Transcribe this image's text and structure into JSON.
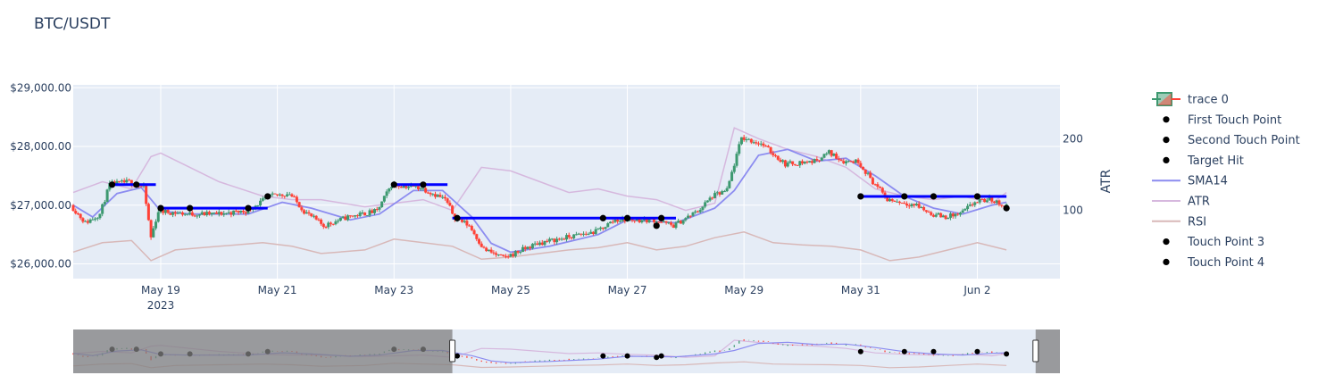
{
  "chart_data": {
    "type": "candlestick",
    "title": "BTC/USDT",
    "x_tick_labels": [
      "May 19\n2023",
      "May 21",
      "May 23",
      "May 25",
      "May 27",
      "May 29",
      "May 31",
      "Jun 2"
    ],
    "x_tick_dates": [
      "2023-05-19",
      "2023-05-21",
      "2023-05-23",
      "2023-05-25",
      "2023-05-27",
      "2023-05-29",
      "2023-05-31",
      "2023-06-02"
    ],
    "xlim": [
      "2023-05-17T12:00",
      "2023-06-03T10:00"
    ],
    "y_left": {
      "ylim": [
        25750,
        29050
      ],
      "ticks": [
        26000,
        27000,
        28000,
        29000
      ],
      "tick_labels": [
        "$26,000.00",
        "$27,000.00",
        "$28,000.00",
        "$29,000.00"
      ]
    },
    "y_right": {
      "label": "ATR",
      "ylim": [
        5,
        275
      ],
      "ticks": [
        100,
        200
      ],
      "tick_labels": [
        "100",
        "200"
      ]
    },
    "grid": true,
    "legend_position": "right",
    "legend": [
      "trace 0",
      "First Touch Point",
      "Second Touch Point",
      "Target Hit",
      "SMA14",
      "ATR",
      "RSI",
      "Touch Point 3",
      "Touch Point 4"
    ],
    "price_path": [
      [
        "2023-05-17T12:00",
        27000
      ],
      [
        "2023-05-17T18:00",
        26700
      ],
      [
        "2023-05-18T00:00",
        26850
      ],
      [
        "2023-05-18T04:00",
        27350
      ],
      [
        "2023-05-18T12:00",
        27400
      ],
      [
        "2023-05-18T18:00",
        27300
      ],
      [
        "2023-05-18T21:00",
        26450
      ],
      [
        "2023-05-19T00:00",
        26900
      ],
      [
        "2023-05-19T12:00",
        26850
      ],
      [
        "2023-05-20T00:00",
        26850
      ],
      [
        "2023-05-20T12:00",
        26900
      ],
      [
        "2023-05-20T22:00",
        27150
      ],
      [
        "2023-05-21T06:00",
        27200
      ],
      [
        "2023-05-21T12:00",
        26900
      ],
      [
        "2023-05-21T20:00",
        26650
      ],
      [
        "2023-05-22T06:00",
        26800
      ],
      [
        "2023-05-22T18:00",
        26900
      ],
      [
        "2023-05-23T00:00",
        27350
      ],
      [
        "2023-05-23T12:00",
        27300
      ],
      [
        "2023-05-23T22:00",
        27100
      ],
      [
        "2023-05-24T02:00",
        26800
      ],
      [
        "2023-05-24T08:00",
        26650
      ],
      [
        "2023-05-24T14:00",
        26250
      ],
      [
        "2023-05-24T22:00",
        26100
      ],
      [
        "2023-05-25T12:00",
        26350
      ],
      [
        "2023-05-26T00:00",
        26450
      ],
      [
        "2023-05-26T12:00",
        26550
      ],
      [
        "2023-05-26T20:00",
        26750
      ],
      [
        "2023-05-27T12:00",
        26750
      ],
      [
        "2023-05-27T20:00",
        26650
      ],
      [
        "2023-05-28T06:00",
        26900
      ],
      [
        "2023-05-28T12:00",
        27150
      ],
      [
        "2023-05-28T18:00",
        27250
      ],
      [
        "2023-05-28T22:00",
        27850
      ],
      [
        "2023-05-29T00:00",
        28150
      ],
      [
        "2023-05-29T08:00",
        28050
      ],
      [
        "2023-05-29T18:00",
        27700
      ],
      [
        "2023-05-30T06:00",
        27750
      ],
      [
        "2023-05-30T12:00",
        27900
      ],
      [
        "2023-05-30T18:00",
        27750
      ],
      [
        "2023-05-31T00:00",
        27750
      ],
      [
        "2023-05-31T06:00",
        27400
      ],
      [
        "2023-05-31T12:00",
        27100
      ],
      [
        "2023-06-01T00:00",
        27000
      ],
      [
        "2023-06-01T06:00",
        26850
      ],
      [
        "2023-06-01T12:00",
        26800
      ],
      [
        "2023-06-01T18:00",
        26850
      ],
      [
        "2023-06-02T00:00",
        27050
      ],
      [
        "2023-06-02T06:00",
        27100
      ],
      [
        "2023-06-02T12:00",
        27000
      ]
    ],
    "sma14": [
      [
        "2023-05-17T12:00",
        27000
      ],
      [
        "2023-05-17T20:00",
        26800
      ],
      [
        "2023-05-18T06:00",
        27200
      ],
      [
        "2023-05-18T16:00",
        27300
      ],
      [
        "2023-05-19T00:00",
        26900
      ],
      [
        "2023-05-19T12:00",
        26850
      ],
      [
        "2023-05-20T12:00",
        26850
      ],
      [
        "2023-05-21T02:00",
        27050
      ],
      [
        "2023-05-21T14:00",
        26950
      ],
      [
        "2023-05-22T06:00",
        26750
      ],
      [
        "2023-05-22T18:00",
        26850
      ],
      [
        "2023-05-23T08:00",
        27250
      ],
      [
        "2023-05-23T20:00",
        27250
      ],
      [
        "2023-05-24T08:00",
        26800
      ],
      [
        "2023-05-24T16:00",
        26350
      ],
      [
        "2023-05-25T00:00",
        26200
      ],
      [
        "2023-05-25T16:00",
        26300
      ],
      [
        "2023-05-26T12:00",
        26500
      ],
      [
        "2023-05-27T00:00",
        26750
      ],
      [
        "2023-05-27T20:00",
        26700
      ],
      [
        "2023-05-28T12:00",
        26950
      ],
      [
        "2023-05-28T20:00",
        27250
      ],
      [
        "2023-05-29T06:00",
        27850
      ],
      [
        "2023-05-29T18:00",
        27950
      ],
      [
        "2023-05-30T06:00",
        27750
      ],
      [
        "2023-05-30T18:00",
        27800
      ],
      [
        "2023-05-31T06:00",
        27500
      ],
      [
        "2023-05-31T18:00",
        27150
      ],
      [
        "2023-06-01T06:00",
        26950
      ],
      [
        "2023-06-01T18:00",
        26850
      ],
      [
        "2023-06-02T06:00",
        27000
      ],
      [
        "2023-06-02T12:00",
        27050
      ]
    ],
    "atr": [
      [
        "2023-05-17T12:00",
        125
      ],
      [
        "2023-05-18T00:00",
        140
      ],
      [
        "2023-05-18T12:00",
        130
      ],
      [
        "2023-05-18T20:00",
        175
      ],
      [
        "2023-05-19T00:00",
        180
      ],
      [
        "2023-05-19T12:00",
        160
      ],
      [
        "2023-05-20T00:00",
        140
      ],
      [
        "2023-05-20T18:00",
        120
      ],
      [
        "2023-05-21T06:00",
        115
      ],
      [
        "2023-05-21T18:00",
        115
      ],
      [
        "2023-05-22T12:00",
        105
      ],
      [
        "2023-05-23T00:00",
        110
      ],
      [
        "2023-05-23T12:00",
        115
      ],
      [
        "2023-05-24T00:00",
        100
      ],
      [
        "2023-05-24T12:00",
        160
      ],
      [
        "2023-05-25T00:00",
        155
      ],
      [
        "2023-05-25T12:00",
        140
      ],
      [
        "2023-05-26T00:00",
        125
      ],
      [
        "2023-05-26T12:00",
        130
      ],
      [
        "2023-05-27T00:00",
        120
      ],
      [
        "2023-05-27T12:00",
        115
      ],
      [
        "2023-05-28T00:00",
        100
      ],
      [
        "2023-05-28T12:00",
        110
      ],
      [
        "2023-05-28T20:00",
        215
      ],
      [
        "2023-05-29T06:00",
        200
      ],
      [
        "2023-05-29T18:00",
        185
      ],
      [
        "2023-05-30T06:00",
        175
      ],
      [
        "2023-05-30T18:00",
        160
      ],
      [
        "2023-05-31T06:00",
        130
      ],
      [
        "2023-05-31T18:00",
        120
      ],
      [
        "2023-06-01T06:00",
        115
      ],
      [
        "2023-06-01T18:00",
        120
      ],
      [
        "2023-06-02T06:00",
        110
      ],
      [
        "2023-06-02T12:00",
        125
      ]
    ],
    "rsi": [
      [
        "2023-05-17T12:00",
        42
      ],
      [
        "2023-05-18T00:00",
        55
      ],
      [
        "2023-05-18T12:00",
        58
      ],
      [
        "2023-05-18T20:00",
        30
      ],
      [
        "2023-05-19T06:00",
        45
      ],
      [
        "2023-05-20T00:00",
        50
      ],
      [
        "2023-05-20T18:00",
        55
      ],
      [
        "2023-05-21T06:00",
        50
      ],
      [
        "2023-05-21T18:00",
        40
      ],
      [
        "2023-05-22T12:00",
        45
      ],
      [
        "2023-05-23T00:00",
        60
      ],
      [
        "2023-05-23T12:00",
        55
      ],
      [
        "2023-05-24T00:00",
        50
      ],
      [
        "2023-05-24T12:00",
        32
      ],
      [
        "2023-05-25T00:00",
        35
      ],
      [
        "2023-05-25T12:00",
        40
      ],
      [
        "2023-05-26T00:00",
        45
      ],
      [
        "2023-05-26T12:00",
        48
      ],
      [
        "2023-05-27T00:00",
        55
      ],
      [
        "2023-05-27T12:00",
        45
      ],
      [
        "2023-05-28T00:00",
        50
      ],
      [
        "2023-05-28T12:00",
        62
      ],
      [
        "2023-05-29T00:00",
        70
      ],
      [
        "2023-05-29T12:00",
        55
      ],
      [
        "2023-05-30T00:00",
        52
      ],
      [
        "2023-05-30T12:00",
        50
      ],
      [
        "2023-05-31T00:00",
        45
      ],
      [
        "2023-05-31T12:00",
        30
      ],
      [
        "2023-06-01T00:00",
        35
      ],
      [
        "2023-06-01T12:00",
        45
      ],
      [
        "2023-06-02T00:00",
        55
      ],
      [
        "2023-06-02T12:00",
        45
      ]
    ],
    "support_levels": [
      {
        "from": "2023-05-18T04:00",
        "to": "2023-05-18T22:00",
        "y": 27350
      },
      {
        "from": "2023-05-18T23:00",
        "to": "2023-05-20T20:00",
        "y": 26950
      },
      {
        "from": "2023-05-23T00:00",
        "to": "2023-05-23T22:00",
        "y": 27350
      },
      {
        "from": "2023-05-24T00:00",
        "to": "2023-05-27T20:00",
        "y": 26780
      },
      {
        "from": "2023-05-31T00:00",
        "to": "2023-06-02T12:00",
        "y": 27150
      }
    ],
    "first_touch_points": [
      [
        "2023-05-18T04:00",
        27350
      ],
      [
        "2023-05-23T00:00",
        27350
      ],
      [
        "2023-05-24T02:00",
        26780
      ],
      [
        "2023-05-31T00:00",
        27150
      ]
    ],
    "second_touch_points": [
      [
        "2023-05-18T14:00",
        27350
      ],
      [
        "2023-05-23T12:00",
        27350
      ],
      [
        "2023-05-26T14:00",
        26780
      ],
      [
        "2023-05-31T18:00",
        27150
      ]
    ],
    "target_hits": [
      [
        "2023-05-19T00:00",
        26950
      ],
      [
        "2023-05-20T20:00",
        27150
      ],
      [
        "2023-05-27T12:00",
        26650
      ],
      [
        "2023-06-02T12:00",
        26950
      ]
    ],
    "touch_point_3": [
      [
        "2023-05-19T12:00",
        26950
      ],
      [
        "2023-05-27T00:00",
        26780
      ],
      [
        "2023-06-01T06:00",
        27150
      ]
    ],
    "touch_point_4": [
      [
        "2023-05-20T12:00",
        26950
      ],
      [
        "2023-05-27T14:00",
        26780
      ],
      [
        "2023-06-02T00:00",
        27150
      ]
    ],
    "range_selector": {
      "from": "2023-05-24T00:00",
      "to": "2023-06-03T00:00"
    },
    "colors": {
      "increasing": "#3d9970",
      "decreasing": "#ff4136",
      "support": "#0000ff",
      "sma14": "#8c8cf0",
      "atr": "#d6b8de",
      "rsi": "#d8b8b8",
      "marker": "#000000",
      "plot_bg": "#e5ecf6",
      "grid": "#ffffff",
      "slider_mask": "#7f7f7f"
    }
  }
}
